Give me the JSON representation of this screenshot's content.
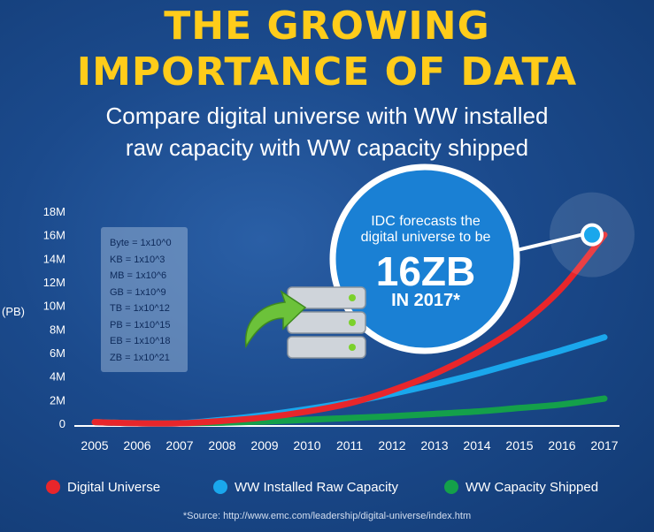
{
  "header": {
    "title_line1": "THE GROWING",
    "title_line2": "IMPORTANCE OF DATA",
    "subtitle_line1": "Compare digital universe with WW installed",
    "subtitle_line2": "raw capacity with WW capacity shipped"
  },
  "units_table": [
    "Byte = 1x10^0",
    "KB = 1x10^3",
    "MB = 1x10^6",
    "GB = 1x10^9",
    "TB = 1x10^12",
    "PB = 1x10^15",
    "EB = 1x10^18",
    "ZB = 1x10^21"
  ],
  "callout": {
    "line1": "IDC forecasts the",
    "line2": "digital universe to be",
    "big": "16ZB",
    "line3": "IN 2017*"
  },
  "source": "*Source: http://www.emc.com/leadership/digital-universe/index.htm",
  "colors": {
    "digital_universe": "#e8262b",
    "installed": "#1aa7ec",
    "shipped": "#14a04a",
    "title": "#ffcc1a"
  },
  "icons": {
    "server": "server-stack-icon",
    "arrow": "green-arrow-icon"
  },
  "chart_data": {
    "type": "line",
    "x": [
      2005,
      2006,
      2007,
      2008,
      2009,
      2010,
      2011,
      2012,
      2013,
      2014,
      2015,
      2016,
      2017
    ],
    "xticks": [
      "2005",
      "2006",
      "2007",
      "2008",
      "2009",
      "2010",
      "2011",
      "2012",
      "2013",
      "2014",
      "2015",
      "2016",
      "2017"
    ],
    "yticks": [
      "0",
      "2M",
      "4M",
      "6M",
      "8M",
      "10M",
      "12M",
      "14M",
      "16M",
      "18M"
    ],
    "ylabel": "(PB)",
    "ylim": [
      0,
      18
    ],
    "grid": false,
    "legend_position": "bottom",
    "series": [
      {
        "name": "Digital Universe",
        "color": "#e8262b",
        "values": [
          0.1,
          0.0,
          0.0,
          0.2,
          0.5,
          1.0,
          1.7,
          2.8,
          4.2,
          6.0,
          8.3,
          11.5,
          16.0
        ]
      },
      {
        "name": "WW Installed Raw Capacity",
        "color": "#1aa7ec",
        "values": [
          0.1,
          0.0,
          0.0,
          0.3,
          0.7,
          1.2,
          1.8,
          2.5,
          3.3,
          4.2,
          5.2,
          6.2,
          7.3
        ]
      },
      {
        "name": "WW Capacity Shipped",
        "color": "#14a04a",
        "values": [
          0.1,
          0.0,
          0.0,
          0.05,
          0.15,
          0.3,
          0.45,
          0.6,
          0.8,
          1.0,
          1.3,
          1.6,
          2.1
        ]
      }
    ]
  }
}
